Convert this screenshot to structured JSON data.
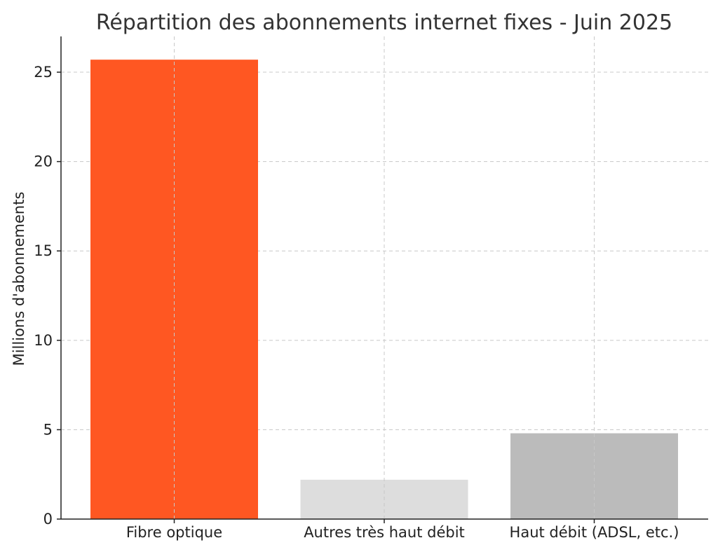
{
  "chart_data": {
    "type": "bar",
    "title": "Répartition des abonnements internet fixes - Juin 2025",
    "xlabel": "",
    "ylabel": "Millions d'abonnements",
    "categories": [
      "Fibre optique",
      "Autres très haut débit",
      "Haut débit (ADSL, etc.)"
    ],
    "values": [
      25.7,
      2.2,
      4.8
    ],
    "colors": [
      "#ff5722",
      "#dddddd",
      "#bbbbbb"
    ],
    "ylim": [
      0,
      27
    ],
    "yticks": [
      0,
      5,
      10,
      15,
      20,
      25
    ],
    "grid": true
  }
}
